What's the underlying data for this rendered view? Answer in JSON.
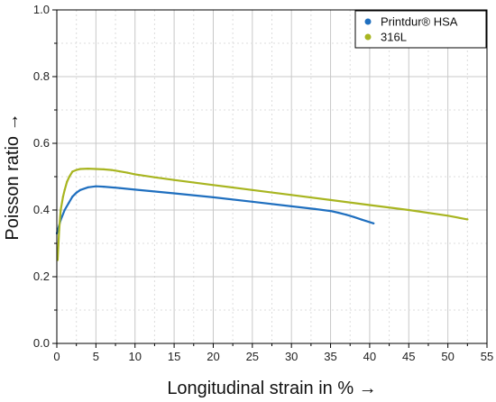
{
  "chart_data": {
    "type": "line",
    "xlabel": "Longitudinal strain in % →",
    "ylabel": "Poisson ratio →",
    "xlim": [
      0,
      55
    ],
    "ylim": [
      0.0,
      1.0
    ],
    "x_ticks": [
      0,
      5,
      10,
      15,
      20,
      25,
      30,
      35,
      40,
      45,
      50,
      55
    ],
    "y_ticks": [
      0.0,
      0.2,
      0.4,
      0.6,
      0.8,
      1.0
    ],
    "grid": true,
    "legend_position": "top-right",
    "series": [
      {
        "name": "Printdur® HSA",
        "color": "#1f6fbf",
        "marker": "circle",
        "x": [
          0,
          0.5,
          1,
          1.5,
          2,
          2.5,
          3,
          4,
          5,
          6,
          8,
          10,
          15,
          20,
          25,
          30,
          33,
          35,
          36,
          37,
          38,
          39,
          40.5
        ],
        "y": [
          0.33,
          0.37,
          0.4,
          0.42,
          0.44,
          0.452,
          0.46,
          0.468,
          0.471,
          0.47,
          0.466,
          0.461,
          0.45,
          0.438,
          0.425,
          0.411,
          0.403,
          0.397,
          0.392,
          0.386,
          0.379,
          0.371,
          0.36
        ]
      },
      {
        "name": "316L",
        "color": "#a8b520",
        "marker": "circle",
        "x": [
          0.1,
          0.3,
          0.5,
          0.8,
          1.0,
          1.3,
          1.6,
          2.0,
          2.5,
          3.0,
          4.0,
          5.0,
          6.0,
          7.0,
          8.0,
          9.0,
          10.0,
          12.5,
          15,
          20,
          25,
          30,
          35,
          40,
          45,
          50,
          52.5
        ],
        "y": [
          0.25,
          0.34,
          0.4,
          0.44,
          0.46,
          0.485,
          0.5,
          0.515,
          0.52,
          0.523,
          0.524,
          0.523,
          0.522,
          0.52,
          0.516,
          0.512,
          0.507,
          0.498,
          0.49,
          0.475,
          0.46,
          0.445,
          0.43,
          0.415,
          0.4,
          0.383,
          0.372
        ]
      }
    ]
  }
}
